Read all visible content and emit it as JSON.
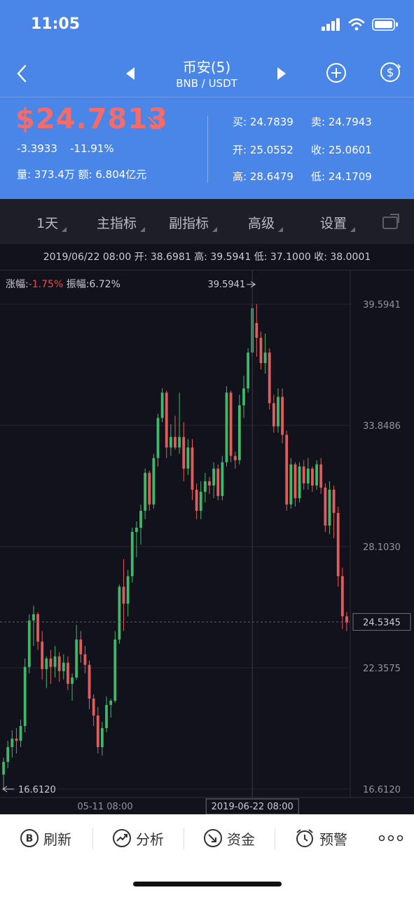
{
  "status": {
    "time": "11:05"
  },
  "nav": {
    "title": "币安(5)",
    "pair": "BNB / USDT"
  },
  "quote": {
    "price": "$24.7813",
    "change_abs": "-3.3933",
    "change_pct": "-11.91%",
    "volume_line": "量: 373.4万  额: 6.804亿元",
    "buy": "买: 24.7839",
    "sell": "卖: 24.7943",
    "open": "开: 25.0552",
    "close": "收: 25.0601",
    "high": "高: 28.6479",
    "low": "低: 24.1709"
  },
  "toolbar": {
    "interval": "1天",
    "main_indicator": "主指标",
    "sub_indicator": "副指标",
    "advanced": "高级",
    "settings": "设置"
  },
  "info_bar": "2019/06/22 08:00 开: 38.6981 高: 39.5941 低: 37.1000 收: 38.0001",
  "stats": {
    "rise_label": "涨幅:",
    "rise_value": "-1.75%",
    "amp_label": " 振幅:",
    "amp_value": "6.72%"
  },
  "chart_data": {
    "type": "candlestick",
    "y_ticks": [
      "39.5941",
      "33.8486",
      "28.1030",
      "22.3575",
      "16.6120"
    ],
    "ylim": [
      16.612,
      39.5941
    ],
    "x_labels": [
      "05-11 08:00",
      "2019-06-22 08:00"
    ],
    "max_label": "39.5941",
    "min_label": "16.6120",
    "current_price_label": "24.5345",
    "colors": {
      "up": "#3fb86a",
      "down": "#e25c5c"
    },
    "candles": [
      [
        17.3,
        18.1,
        16.6,
        17.9
      ],
      [
        17.9,
        18.9,
        17.6,
        18.6
      ],
      [
        18.6,
        19.4,
        18.1,
        19.0
      ],
      [
        19.0,
        19.5,
        18.3,
        18.9
      ],
      [
        18.9,
        19.9,
        18.6,
        19.6
      ],
      [
        19.6,
        22.8,
        19.3,
        22.4
      ],
      [
        22.4,
        24.9,
        22.1,
        24.6
      ],
      [
        24.6,
        25.3,
        23.4,
        24.9
      ],
      [
        24.9,
        25.0,
        23.2,
        23.6
      ],
      [
        23.6,
        24.1,
        21.8,
        22.3
      ],
      [
        22.3,
        22.9,
        21.4,
        22.8
      ],
      [
        22.8,
        23.2,
        21.6,
        22.4
      ],
      [
        22.4,
        23.4,
        21.9,
        22.9
      ],
      [
        22.9,
        23.1,
        21.7,
        22.2
      ],
      [
        22.2,
        23.0,
        21.8,
        22.6
      ],
      [
        22.6,
        22.9,
        21.3,
        21.6
      ],
      [
        21.6,
        22.1,
        20.8,
        21.9
      ],
      [
        21.9,
        24.4,
        21.8,
        23.7
      ],
      [
        23.7,
        24.1,
        22.6,
        23.0
      ],
      [
        23.0,
        23.4,
        22.1,
        22.5
      ],
      [
        22.5,
        22.7,
        20.4,
        20.9
      ],
      [
        20.9,
        21.1,
        19.6,
        20.1
      ],
      [
        20.1,
        20.5,
        18.3,
        18.6
      ],
      [
        18.6,
        19.8,
        18.2,
        19.5
      ],
      [
        19.5,
        21.0,
        19.3,
        20.6
      ],
      [
        20.6,
        20.9,
        20.0,
        20.8
      ],
      [
        20.8,
        24.1,
        20.7,
        23.7
      ],
      [
        23.7,
        26.3,
        23.5,
        26.2
      ],
      [
        26.2,
        27.5,
        24.1,
        25.4
      ],
      [
        25.4,
        27.0,
        24.8,
        26.7
      ],
      [
        26.7,
        29.0,
        26.4,
        28.8
      ],
      [
        28.8,
        29.3,
        27.6,
        29.0
      ],
      [
        29.0,
        30.1,
        28.2,
        29.8
      ],
      [
        29.8,
        31.8,
        29.4,
        31.6
      ],
      [
        31.6,
        31.7,
        29.8,
        30.1
      ],
      [
        30.1,
        32.5,
        29.9,
        32.3
      ],
      [
        32.3,
        34.4,
        31.9,
        34.2
      ],
      [
        34.2,
        35.6,
        34.0,
        35.4
      ],
      [
        35.4,
        35.5,
        32.3,
        32.8
      ],
      [
        32.8,
        33.9,
        32.4,
        33.3
      ],
      [
        33.3,
        34.3,
        32.7,
        32.8
      ],
      [
        32.8,
        35.4,
        32.5,
        33.3
      ],
      [
        33.3,
        34.0,
        31.2,
        31.8
      ],
      [
        31.8,
        33.2,
        31.5,
        32.8
      ],
      [
        32.8,
        33.2,
        30.3,
        30.8
      ],
      [
        30.8,
        31.1,
        29.4,
        29.8
      ],
      [
        29.8,
        31.2,
        29.4,
        30.7
      ],
      [
        30.7,
        31.6,
        30.2,
        31.2
      ],
      [
        31.2,
        31.4,
        30.6,
        31.0
      ],
      [
        31.0,
        32.1,
        30.4,
        31.8
      ],
      [
        31.8,
        32.0,
        30.3,
        30.5
      ],
      [
        30.5,
        32.4,
        30.3,
        32.1
      ],
      [
        32.1,
        35.7,
        31.9,
        35.4
      ],
      [
        35.4,
        35.5,
        32.1,
        32.4
      ],
      [
        32.4,
        32.6,
        31.8,
        32.2
      ],
      [
        32.2,
        35.3,
        32.0,
        34.8
      ],
      [
        34.8,
        36.2,
        34.2,
        35.6
      ],
      [
        35.6,
        37.5,
        35.4,
        37.3
      ],
      [
        37.3,
        39.6,
        37.1,
        39.4
      ],
      [
        38.7,
        39.6,
        37.1,
        38.0
      ],
      [
        38.0,
        38.3,
        36.5,
        36.8
      ],
      [
        36.8,
        38.2,
        36.3,
        37.3
      ],
      [
        37.3,
        37.5,
        34.6,
        34.9
      ],
      [
        34.9,
        35.3,
        33.5,
        33.8
      ],
      [
        33.8,
        35.6,
        33.5,
        35.2
      ],
      [
        35.2,
        35.6,
        33.0,
        33.4
      ],
      [
        33.4,
        33.6,
        29.8,
        30.1
      ],
      [
        30.1,
        32.3,
        29.9,
        32.0
      ],
      [
        32.0,
        32.1,
        30.0,
        30.4
      ],
      [
        30.4,
        32.1,
        30.2,
        31.9
      ],
      [
        31.9,
        32.2,
        30.8,
        31.1
      ],
      [
        31.1,
        32.3,
        30.8,
        31.8
      ],
      [
        31.8,
        31.9,
        30.7,
        31.0
      ],
      [
        31.0,
        32.2,
        30.8,
        32.0
      ],
      [
        32.0,
        32.3,
        30.6,
        30.9
      ],
      [
        30.9,
        31.1,
        28.8,
        29.1
      ],
      [
        29.1,
        31.2,
        28.7,
        30.8
      ],
      [
        30.8,
        31.0,
        28.5,
        29.7
      ],
      [
        29.7,
        30.0,
        26.2,
        26.7
      ],
      [
        26.7,
        27.1,
        24.2,
        24.8
      ],
      [
        24.8,
        25.0,
        24.1,
        24.5
      ]
    ]
  }
}
